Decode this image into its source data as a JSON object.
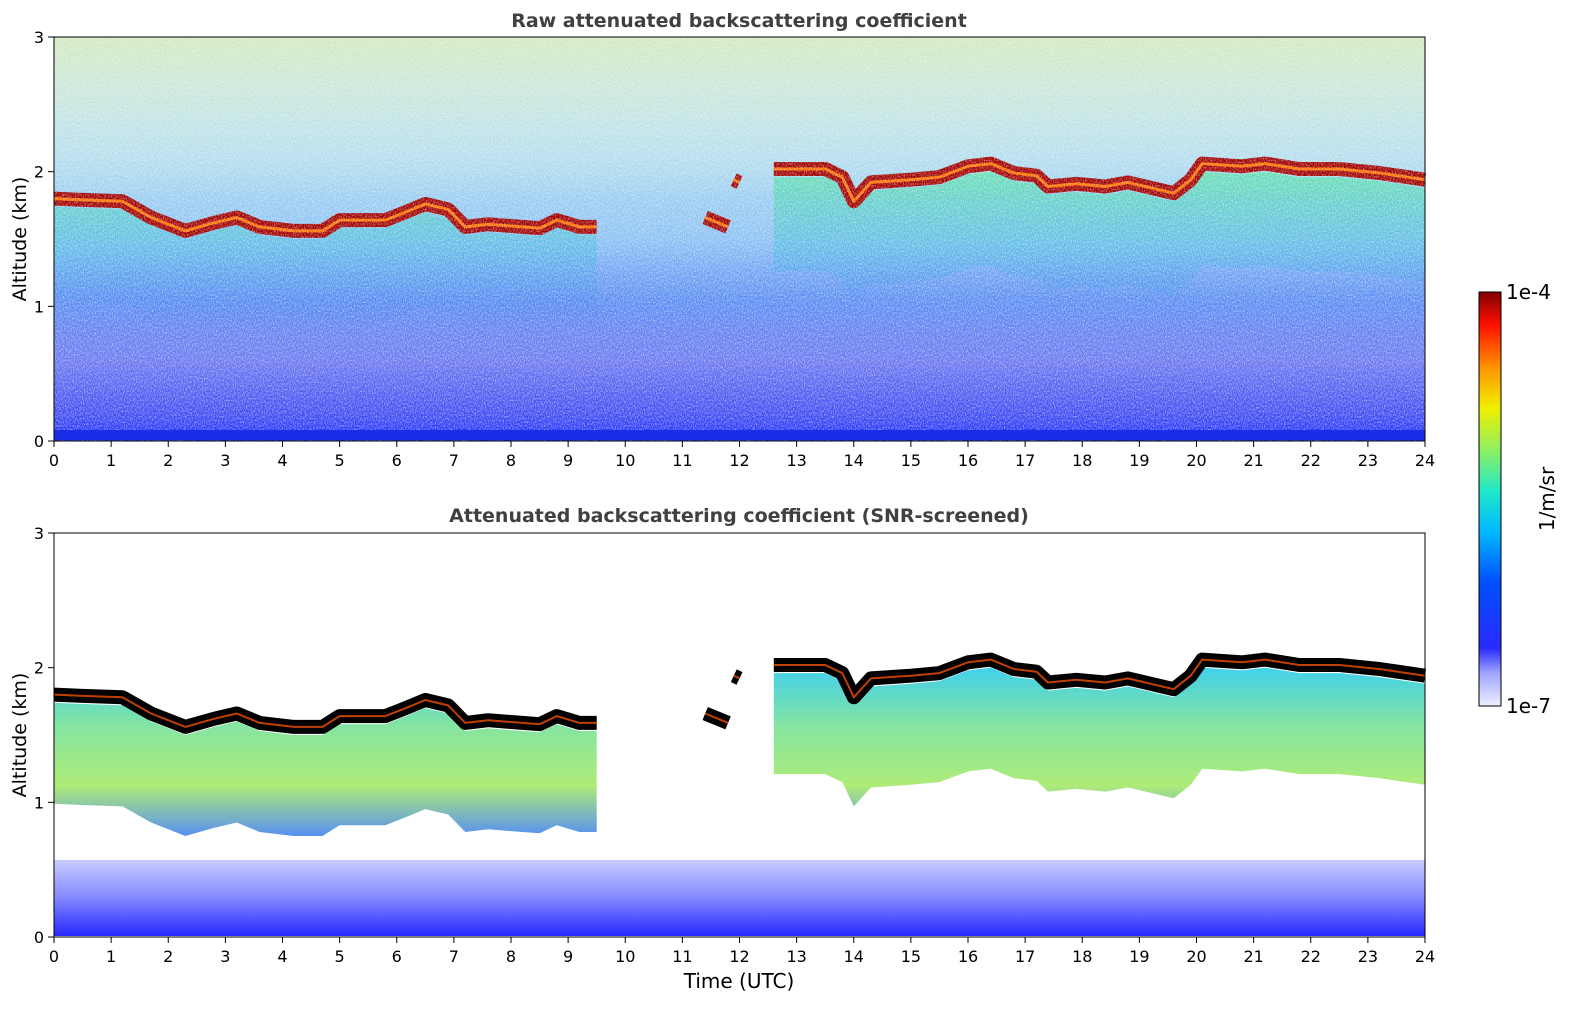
{
  "colors": {
    "cloud_core": "#800000",
    "cloud_saturated": "#000000",
    "background": "#ffffff"
  },
  "colorbar": {
    "max_label": "1e-4",
    "min_label": "1e-7",
    "unit_label": "1/m/sr",
    "scale": "log",
    "range": [
      1e-07,
      0.0001
    ],
    "colormap": "jet"
  },
  "chart_data": [
    {
      "type": "heatmap",
      "title": "Raw attenuated backscattering coefficient",
      "xlabel": "",
      "ylabel": "Altitude (km)",
      "xlim": [
        0,
        24
      ],
      "ylim": [
        0,
        3
      ],
      "xticks": [
        "0",
        "1",
        "2",
        "3",
        "4",
        "5",
        "6",
        "7",
        "8",
        "9",
        "10",
        "11",
        "12",
        "13",
        "14",
        "15",
        "16",
        "17",
        "18",
        "19",
        "20",
        "21",
        "22",
        "23",
        "24"
      ],
      "yticks": [
        "0",
        "1",
        "2",
        "3"
      ],
      "cloud_top_km": [
        [
          0,
          1.86
        ],
        [
          0.5,
          1.85
        ],
        [
          1.2,
          1.84
        ],
        [
          1.7,
          1.72
        ],
        [
          2.3,
          1.62
        ],
        [
          2.8,
          1.68
        ],
        [
          3.2,
          1.72
        ],
        [
          3.6,
          1.65
        ],
        [
          4.2,
          1.62
        ],
        [
          4.7,
          1.62
        ],
        [
          5.0,
          1.7
        ],
        [
          5.8,
          1.7
        ],
        [
          6.1,
          1.75
        ],
        [
          6.5,
          1.82
        ],
        [
          6.9,
          1.78
        ],
        [
          7.2,
          1.65
        ],
        [
          7.6,
          1.67
        ],
        [
          8.2,
          1.65
        ],
        [
          8.5,
          1.64
        ],
        [
          8.8,
          1.7
        ],
        [
          9.2,
          1.65
        ],
        [
          9.5,
          1.65
        ]
      ],
      "cloud_top_km_2": [
        [
          11.4,
          1.72
        ],
        [
          11.8,
          1.65
        ]
      ],
      "cloud_top_km_3": [
        [
          11.9,
          2.0
        ],
        [
          12.0,
          1.98
        ]
      ],
      "cloud_top_km_4": [
        [
          12.6,
          2.08
        ],
        [
          13.0,
          2.08
        ],
        [
          13.5,
          2.08
        ],
        [
          13.8,
          2.02
        ],
        [
          14.0,
          1.84
        ],
        [
          14.3,
          1.98
        ],
        [
          15.0,
          2.0
        ],
        [
          15.5,
          2.02
        ],
        [
          16.0,
          2.1
        ],
        [
          16.4,
          2.12
        ],
        [
          16.8,
          2.05
        ],
        [
          17.2,
          2.03
        ],
        [
          17.4,
          1.95
        ],
        [
          17.9,
          1.97
        ],
        [
          18.4,
          1.95
        ],
        [
          18.8,
          1.98
        ],
        [
          19.2,
          1.94
        ],
        [
          19.6,
          1.9
        ],
        [
          19.9,
          2.0
        ],
        [
          20.1,
          2.12
        ],
        [
          20.8,
          2.1
        ],
        [
          21.2,
          2.12
        ],
        [
          21.8,
          2.08
        ],
        [
          22.5,
          2.08
        ],
        [
          23.2,
          2.05
        ],
        [
          24,
          2.0
        ]
      ]
    },
    {
      "type": "heatmap",
      "title": "Attenuated backscattering coefficient (SNR-screened)",
      "xlabel": "Time (UTC)",
      "ylabel": "Altitude (km)",
      "xlim": [
        0,
        24
      ],
      "ylim": [
        0,
        3
      ],
      "xticks": [
        "0",
        "1",
        "2",
        "3",
        "4",
        "5",
        "6",
        "7",
        "8",
        "9",
        "10",
        "11",
        "12",
        "13",
        "14",
        "15",
        "16",
        "17",
        "18",
        "19",
        "20",
        "21",
        "22",
        "23",
        "24"
      ],
      "yticks": [
        "0",
        "1",
        "2",
        "3"
      ],
      "cloud_top_km": [
        [
          0,
          1.86
        ],
        [
          0.5,
          1.85
        ],
        [
          1.2,
          1.84
        ],
        [
          1.7,
          1.72
        ],
        [
          2.3,
          1.62
        ],
        [
          2.8,
          1.68
        ],
        [
          3.2,
          1.72
        ],
        [
          3.6,
          1.65
        ],
        [
          4.2,
          1.62
        ],
        [
          4.7,
          1.62
        ],
        [
          5.0,
          1.7
        ],
        [
          5.8,
          1.7
        ],
        [
          6.1,
          1.75
        ],
        [
          6.5,
          1.82
        ],
        [
          6.9,
          1.78
        ],
        [
          7.2,
          1.65
        ],
        [
          7.6,
          1.67
        ],
        [
          8.2,
          1.65
        ],
        [
          8.5,
          1.64
        ],
        [
          8.8,
          1.7
        ],
        [
          9.2,
          1.65
        ],
        [
          9.5,
          1.65
        ]
      ],
      "cloud_top_km_2": [
        [
          11.4,
          1.72
        ],
        [
          11.8,
          1.65
        ]
      ],
      "cloud_top_km_3": [
        [
          11.9,
          2.0
        ],
        [
          12.0,
          1.98
        ]
      ],
      "cloud_top_km_4": [
        [
          12.6,
          2.08
        ],
        [
          13.0,
          2.08
        ],
        [
          13.5,
          2.08
        ],
        [
          13.8,
          2.02
        ],
        [
          14.0,
          1.84
        ],
        [
          14.3,
          1.98
        ],
        [
          15.0,
          2.0
        ],
        [
          15.5,
          2.02
        ],
        [
          16.0,
          2.1
        ],
        [
          16.4,
          2.12
        ],
        [
          16.8,
          2.05
        ],
        [
          17.2,
          2.03
        ],
        [
          17.4,
          1.95
        ],
        [
          17.9,
          1.97
        ],
        [
          18.4,
          1.95
        ],
        [
          18.8,
          1.98
        ],
        [
          19.2,
          1.94
        ],
        [
          19.6,
          1.9
        ],
        [
          19.9,
          2.0
        ],
        [
          20.1,
          2.12
        ],
        [
          20.8,
          2.1
        ],
        [
          21.2,
          2.12
        ],
        [
          21.8,
          2.08
        ],
        [
          22.5,
          2.08
        ],
        [
          23.2,
          2.05
        ],
        [
          24,
          2.0
        ]
      ]
    }
  ]
}
